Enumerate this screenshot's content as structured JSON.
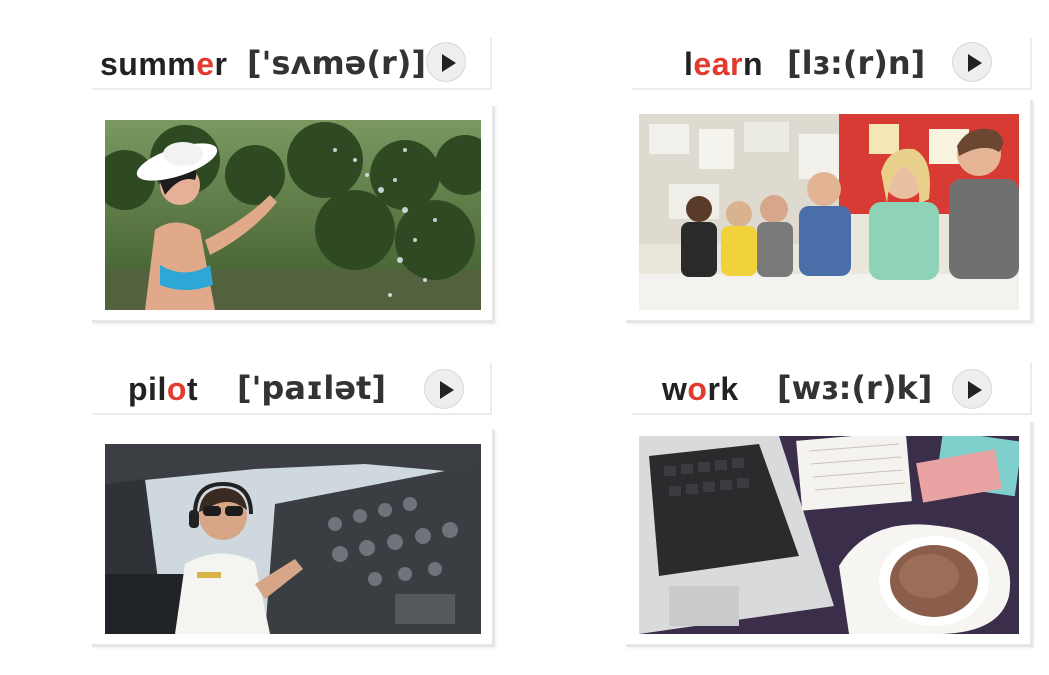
{
  "cards": [
    {
      "word_parts": [
        "summ",
        "e",
        "r"
      ],
      "ipa": "['sʌmə(r)]",
      "image_icon": "swimmer-splashing-water-photo"
    },
    {
      "word_parts": [
        "l",
        "ear",
        "n"
      ],
      "ipa": "[lɜ:(r)n]",
      "image_icon": "students-in-classroom-photo"
    },
    {
      "word_parts": [
        "pil",
        "o",
        "t"
      ],
      "ipa": "['paɪlət]",
      "image_icon": "pilot-in-cockpit-photo"
    },
    {
      "word_parts": [
        "w",
        "o",
        "rk"
      ],
      "ipa": "[wɜ:(r)k]",
      "image_icon": "laptop-coffee-notebook-photo"
    }
  ],
  "colors": {
    "highlight": "#e23a2c",
    "text": "#222222"
  }
}
